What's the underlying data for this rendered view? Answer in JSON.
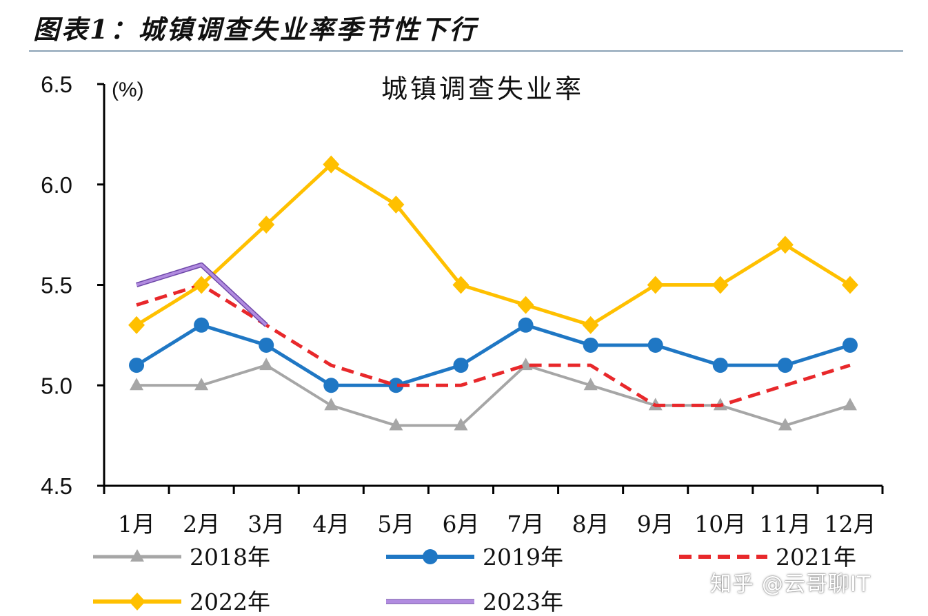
{
  "figure_title": "图表1：城镇调查失业率季节性下行",
  "watermark": "知乎 @云哥聊IT",
  "chart_data": {
    "type": "line",
    "title": "城镇调查失业率",
    "ylabel": "(%)",
    "ylim": [
      4.5,
      6.5
    ],
    "yticks": [
      "6.5",
      "6.0",
      "5.5",
      "5.0",
      "4.5"
    ],
    "categories": [
      "1月",
      "2月",
      "3月",
      "4月",
      "5月",
      "6月",
      "7月",
      "8月",
      "9月",
      "10月",
      "11月",
      "12月"
    ],
    "grid": false,
    "legend_position": "bottom",
    "series": [
      {
        "name": "2018年",
        "color": "#a6a6a6",
        "marker": "triangle",
        "dash": "",
        "width": 4,
        "values": [
          5.0,
          5.0,
          5.1,
          4.9,
          4.8,
          4.8,
          5.1,
          5.0,
          4.9,
          4.9,
          4.8,
          4.9
        ]
      },
      {
        "name": "2019年",
        "color": "#1f77c4",
        "marker": "circle",
        "dash": "",
        "width": 5,
        "values": [
          5.1,
          5.3,
          5.2,
          5.0,
          5.0,
          5.1,
          5.3,
          5.2,
          5.2,
          5.1,
          5.1,
          5.2
        ]
      },
      {
        "name": "2021年",
        "color": "#e8282b",
        "marker": "none",
        "dash": "dashed",
        "width": 5,
        "values": [
          5.4,
          5.5,
          5.3,
          5.1,
          5.0,
          5.0,
          5.1,
          5.1,
          4.9,
          4.9,
          5.0,
          5.1
        ]
      },
      {
        "name": "2022年",
        "color": "#ffc000",
        "marker": "diamond",
        "dash": "",
        "width": 5,
        "values": [
          5.3,
          5.5,
          5.8,
          6.1,
          5.9,
          5.5,
          5.4,
          5.3,
          5.5,
          5.5,
          5.7,
          5.5
        ]
      },
      {
        "name": "2023年",
        "color": "#b18be0",
        "marker": "none",
        "dash": "",
        "width": 4,
        "outline": "#6e48a8",
        "values": [
          5.5,
          5.6,
          5.3,
          null,
          null,
          null,
          null,
          null,
          null,
          null,
          null,
          null
        ]
      }
    ]
  }
}
